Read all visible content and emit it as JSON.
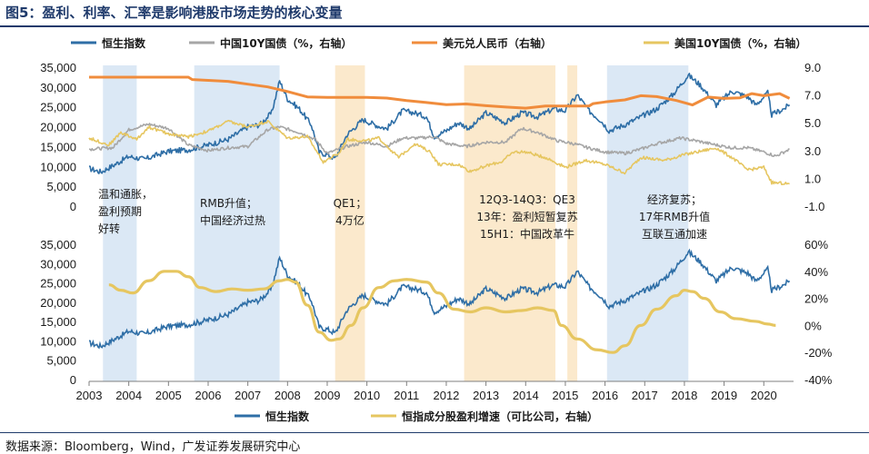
{
  "title": "图5：盈利、利率、汇率是影响港股市场走势的核心变量",
  "source": "数据来源：Bloomberg，Wind，广发证券发展研究中心",
  "chart_data": [
    {
      "type": "line",
      "panel": "top",
      "legend": [
        {
          "name": "恒生指数",
          "color": "#2e6ea6"
        },
        {
          "name": "中国10Y国债（%，右轴）",
          "color": "#a6a6a6"
        },
        {
          "name": "美元兑人民币（右轴）",
          "color": "#f08c3c"
        },
        {
          "name": "美国10Y国债（%，右轴）",
          "color": "#e6c660"
        }
      ],
      "y_left_ticks": [
        "35,000",
        "30,000",
        "25,000",
        "20,000",
        "15,000",
        "10,000",
        "5,000",
        "0"
      ],
      "y_right_ticks": [
        "9.0",
        "7.0",
        "5.0",
        "3.0",
        "1.0",
        "-1.0"
      ],
      "ylim_left": [
        0,
        35000
      ],
      "ylim_right": [
        -1,
        9
      ],
      "series": [
        {
          "name": "恒生指数",
          "axis": "left",
          "color": "#2e6ea6",
          "points": [
            [
              2003.0,
              9500
            ],
            [
              2003.3,
              8600
            ],
            [
              2003.6,
              10200
            ],
            [
              2004.0,
              12500
            ],
            [
              2004.4,
              11800
            ],
            [
              2004.8,
              13200
            ],
            [
              2005.0,
              13800
            ],
            [
              2005.5,
              14200
            ],
            [
              2006.0,
              15400
            ],
            [
              2006.5,
              16800
            ],
            [
              2007.0,
              20000
            ],
            [
              2007.3,
              20500
            ],
            [
              2007.6,
              23500
            ],
            [
              2007.8,
              31500
            ],
            [
              2008.0,
              27000
            ],
            [
              2008.3,
              24500
            ],
            [
              2008.6,
              20500
            ],
            [
              2008.8,
              13500
            ],
            [
              2009.0,
              13000
            ],
            [
              2009.2,
              12000
            ],
            [
              2009.5,
              18000
            ],
            [
              2009.9,
              21800
            ],
            [
              2010.2,
              20500
            ],
            [
              2010.5,
              19500
            ],
            [
              2010.9,
              24000
            ],
            [
              2011.2,
              23500
            ],
            [
              2011.5,
              22500
            ],
            [
              2011.7,
              17500
            ],
            [
              2012.0,
              19000
            ],
            [
              2012.3,
              21000
            ],
            [
              2012.6,
              19500
            ],
            [
              2013.0,
              23500
            ],
            [
              2013.5,
              21000
            ],
            [
              2013.9,
              23500
            ],
            [
              2014.3,
              22500
            ],
            [
              2014.7,
              24500
            ],
            [
              2015.0,
              24000
            ],
            [
              2015.3,
              28000
            ],
            [
              2015.6,
              24000
            ],
            [
              2015.9,
              21500
            ],
            [
              2016.1,
              19000
            ],
            [
              2016.5,
              20500
            ],
            [
              2016.9,
              22500
            ],
            [
              2017.3,
              24500
            ],
            [
              2017.7,
              28000
            ],
            [
              2018.1,
              33000
            ],
            [
              2018.4,
              30500
            ],
            [
              2018.8,
              25500
            ],
            [
              2019.2,
              29000
            ],
            [
              2019.6,
              27500
            ],
            [
              2019.8,
              25500
            ],
            [
              2020.1,
              28500
            ],
            [
              2020.2,
              23000
            ],
            [
              2020.5,
              24500
            ],
            [
              2020.65,
              25500
            ]
          ]
        },
        {
          "name": "中国10Y国债（%，右轴）",
          "axis": "right",
          "color": "#a6a6a6",
          "points": [
            [
              2003.0,
              3.1
            ],
            [
              2003.6,
              3.2
            ],
            [
              2004.0,
              4.5
            ],
            [
              2004.5,
              4.9
            ],
            [
              2005.0,
              4.6
            ],
            [
              2005.5,
              3.4
            ],
            [
              2006.0,
              3.0
            ],
            [
              2006.5,
              3.2
            ],
            [
              2007.0,
              3.3
            ],
            [
              2007.5,
              4.5
            ],
            [
              2007.8,
              4.7
            ],
            [
              2008.3,
              4.3
            ],
            [
              2008.7,
              3.8
            ],
            [
              2009.0,
              2.8
            ],
            [
              2009.5,
              3.3
            ],
            [
              2010.0,
              3.6
            ],
            [
              2010.5,
              3.3
            ],
            [
              2010.9,
              3.9
            ],
            [
              2011.3,
              3.9
            ],
            [
              2011.7,
              4.0
            ],
            [
              2012.0,
              3.5
            ],
            [
              2012.5,
              3.3
            ],
            [
              2013.0,
              3.6
            ],
            [
              2013.5,
              3.6
            ],
            [
              2013.9,
              4.6
            ],
            [
              2014.3,
              4.3
            ],
            [
              2014.8,
              3.7
            ],
            [
              2015.2,
              3.5
            ],
            [
              2015.7,
              3.1
            ],
            [
              2016.0,
              2.9
            ],
            [
              2016.5,
              2.8
            ],
            [
              2016.9,
              3.1
            ],
            [
              2017.3,
              3.5
            ],
            [
              2017.9,
              3.9
            ],
            [
              2018.3,
              3.7
            ],
            [
              2018.8,
              3.4
            ],
            [
              2019.2,
              3.2
            ],
            [
              2019.6,
              3.2
            ],
            [
              2020.0,
              2.9
            ],
            [
              2020.3,
              2.6
            ],
            [
              2020.65,
              3.1
            ]
          ]
        },
        {
          "name": "美元兑人民币（右轴）",
          "axis": "right",
          "color": "#f08c3c",
          "points": [
            [
              2003.0,
              8.28
            ],
            [
              2005.5,
              8.28
            ],
            [
              2005.6,
              8.11
            ],
            [
              2006.0,
              8.05
            ],
            [
              2006.5,
              7.98
            ],
            [
              2007.0,
              7.78
            ],
            [
              2007.5,
              7.58
            ],
            [
              2008.0,
              7.25
            ],
            [
              2008.5,
              6.86
            ],
            [
              2009.0,
              6.83
            ],
            [
              2010.0,
              6.83
            ],
            [
              2010.5,
              6.78
            ],
            [
              2011.0,
              6.6
            ],
            [
              2011.5,
              6.46
            ],
            [
              2012.0,
              6.3
            ],
            [
              2012.5,
              6.35
            ],
            [
              2013.0,
              6.23
            ],
            [
              2013.5,
              6.13
            ],
            [
              2014.0,
              6.05
            ],
            [
              2014.5,
              6.2
            ],
            [
              2015.0,
              6.2
            ],
            [
              2015.6,
              6.21
            ],
            [
              2015.7,
              6.38
            ],
            [
              2016.0,
              6.5
            ],
            [
              2016.5,
              6.65
            ],
            [
              2016.9,
              6.95
            ],
            [
              2017.3,
              6.88
            ],
            [
              2017.8,
              6.6
            ],
            [
              2018.2,
              6.28
            ],
            [
              2018.6,
              6.85
            ],
            [
              2019.0,
              6.75
            ],
            [
              2019.4,
              6.8
            ],
            [
              2019.7,
              7.1
            ],
            [
              2020.0,
              6.95
            ],
            [
              2020.4,
              7.1
            ],
            [
              2020.65,
              6.75
            ]
          ]
        },
        {
          "name": "美国10Y国债（%，右轴）",
          "axis": "right",
          "color": "#e6c660",
          "points": [
            [
              2003.0,
              3.9
            ],
            [
              2003.5,
              3.4
            ],
            [
              2003.8,
              4.3
            ],
            [
              2004.2,
              3.8
            ],
            [
              2004.5,
              4.7
            ],
            [
              2005.0,
              4.2
            ],
            [
              2005.5,
              4.0
            ],
            [
              2006.0,
              4.4
            ],
            [
              2006.5,
              5.1
            ],
            [
              2007.0,
              4.7
            ],
            [
              2007.5,
              5.1
            ],
            [
              2008.0,
              3.9
            ],
            [
              2008.5,
              4.0
            ],
            [
              2008.9,
              2.2
            ],
            [
              2009.3,
              2.8
            ],
            [
              2009.5,
              3.8
            ],
            [
              2010.0,
              3.7
            ],
            [
              2010.3,
              3.9
            ],
            [
              2010.8,
              2.5
            ],
            [
              2011.2,
              3.5
            ],
            [
              2011.6,
              2.9
            ],
            [
              2011.8,
              2.0
            ],
            [
              2012.3,
              2.0
            ],
            [
              2012.6,
              1.5
            ],
            [
              2013.0,
              1.9
            ],
            [
              2013.4,
              2.2
            ],
            [
              2013.7,
              2.9
            ],
            [
              2014.0,
              2.9
            ],
            [
              2014.5,
              2.5
            ],
            [
              2015.0,
              1.8
            ],
            [
              2015.5,
              2.3
            ],
            [
              2016.0,
              2.0
            ],
            [
              2016.5,
              1.4
            ],
            [
              2016.9,
              2.5
            ],
            [
              2017.5,
              2.3
            ],
            [
              2018.0,
              2.7
            ],
            [
              2018.8,
              3.2
            ],
            [
              2019.2,
              2.5
            ],
            [
              2019.6,
              1.6
            ],
            [
              2020.0,
              1.8
            ],
            [
              2020.2,
              0.7
            ],
            [
              2020.65,
              0.6
            ]
          ]
        }
      ]
    },
    {
      "type": "line",
      "panel": "bottom",
      "legend": [
        {
          "name": "恒生指数",
          "color": "#2e6ea6"
        },
        {
          "name": "恒指成分股盈利增速（可比公司，右轴）",
          "color": "#e6c660"
        }
      ],
      "y_left_ticks": [
        "35,000",
        "30,000",
        "25,000",
        "20,000",
        "15,000",
        "10,000",
        "5,000",
        "0"
      ],
      "y_right_ticks": [
        "60%",
        "40%",
        "20%",
        "0%",
        "-20%",
        "-40%"
      ],
      "ylim_left": [
        0,
        35000
      ],
      "ylim_right": [
        -40,
        60
      ],
      "x_ticks": [
        "2003",
        "2004",
        "2005",
        "2006",
        "2007",
        "2008",
        "2009",
        "2010",
        "2011",
        "2012",
        "2013",
        "2014",
        "2015",
        "2016",
        "2017",
        "2018",
        "2019",
        "2020"
      ],
      "xlim": [
        2003,
        2020.75
      ],
      "series": [
        {
          "name": "恒生指数",
          "axis": "left",
          "color": "#2e6ea6",
          "same_as": "top.恒生指数"
        },
        {
          "name": "恒指成分股盈利增速（可比公司，右轴）",
          "axis": "right",
          "color": "#e6c660",
          "points": [
            [
              2003.5,
              30
            ],
            [
              2003.8,
              26
            ],
            [
              2004.1,
              24
            ],
            [
              2004.5,
              33
            ],
            [
              2004.9,
              40
            ],
            [
              2005.2,
              40
            ],
            [
              2005.5,
              36
            ],
            [
              2005.8,
              28
            ],
            [
              2006.2,
              25
            ],
            [
              2006.6,
              27
            ],
            [
              2007.0,
              26
            ],
            [
              2007.4,
              27
            ],
            [
              2007.8,
              33
            ],
            [
              2008.0,
              34
            ],
            [
              2008.2,
              32
            ],
            [
              2008.5,
              15
            ],
            [
              2008.8,
              -5
            ],
            [
              2009.1,
              -11
            ],
            [
              2009.3,
              -10
            ],
            [
              2009.6,
              0
            ],
            [
              2009.9,
              13
            ],
            [
              2010.3,
              28
            ],
            [
              2010.7,
              33
            ],
            [
              2011.0,
              34
            ],
            [
              2011.5,
              32
            ],
            [
              2011.8,
              24
            ],
            [
              2012.2,
              12
            ],
            [
              2012.6,
              10
            ],
            [
              2013.0,
              13
            ],
            [
              2013.5,
              10
            ],
            [
              2013.9,
              11
            ],
            [
              2014.3,
              13
            ],
            [
              2014.7,
              11
            ],
            [
              2014.9,
              0
            ],
            [
              2015.3,
              -10
            ],
            [
              2015.8,
              -18
            ],
            [
              2016.2,
              -20
            ],
            [
              2016.5,
              -15
            ],
            [
              2016.9,
              0
            ],
            [
              2017.3,
              12
            ],
            [
              2017.8,
              22
            ],
            [
              2018.0,
              26
            ],
            [
              2018.2,
              25
            ],
            [
              2018.5,
              20
            ],
            [
              2018.9,
              10
            ],
            [
              2019.3,
              5
            ],
            [
              2019.8,
              3
            ],
            [
              2020.1,
              1
            ],
            [
              2020.3,
              0
            ]
          ]
        }
      ]
    }
  ],
  "annotations": [
    {
      "lines": [
        "温和通胀，",
        "盈利预期",
        "好转"
      ]
    },
    {
      "lines": [
        "RMB升值；",
        "中国经济过热"
      ]
    },
    {
      "lines": [
        "QE1；",
        "4万亿"
      ]
    },
    {
      "lines": [
        "12Q3-14Q3：QE3",
        "13年：盈利短暂复苏",
        "15H1：中国改革牛"
      ]
    },
    {
      "lines": [
        "经济复苏；",
        "17年RMB升值",
        "互联互通加速"
      ]
    }
  ],
  "shaded_periods": [
    {
      "from": 2003.35,
      "to": 2004.2,
      "color": "#dbe8f5"
    },
    {
      "from": 2005.65,
      "to": 2007.8,
      "color": "#dbe8f5"
    },
    {
      "from": 2009.2,
      "to": 2009.95,
      "color": "#fbe9cc"
    },
    {
      "from": 2012.45,
      "to": 2014.75,
      "color": "#fbe9cc"
    },
    {
      "from": 2015.05,
      "to": 2015.3,
      "color": "#fbe9cc"
    },
    {
      "from": 2016.05,
      "to": 2018.1,
      "color": "#dbe8f5"
    }
  ]
}
